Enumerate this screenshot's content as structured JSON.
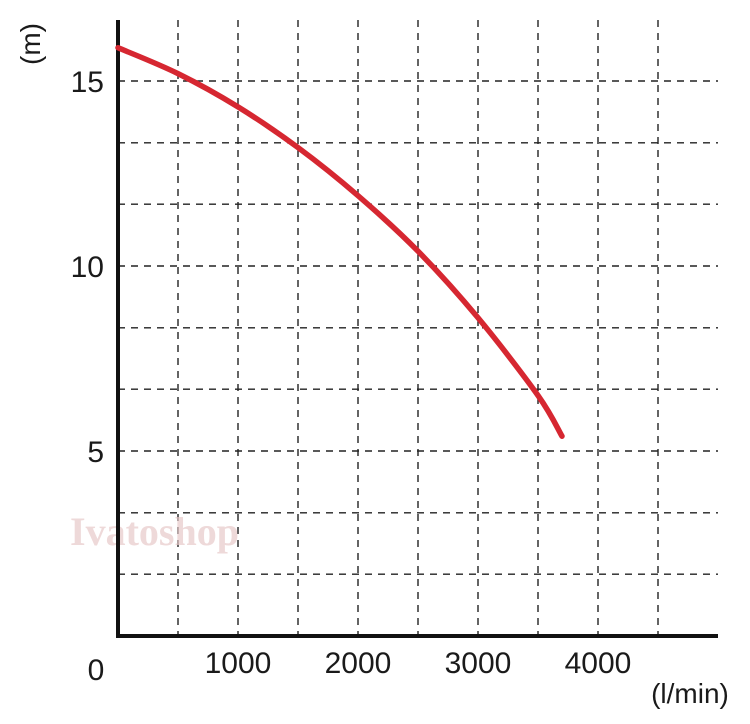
{
  "chart_data": {
    "type": "line",
    "xlabel": "(l/min)",
    "ylabel": "(m)",
    "origin_label": "0",
    "x_ticks": [
      1000,
      2000,
      3000,
      4000
    ],
    "y_ticks": [
      5,
      10,
      15
    ],
    "xlim": [
      0,
      5000
    ],
    "ylim": [
      0,
      16.7
    ],
    "x_grid": [
      500,
      1000,
      1500,
      2000,
      2500,
      3000,
      3500,
      4000,
      4500
    ],
    "y_grid": [
      1.67,
      3.33,
      5,
      6.67,
      8.33,
      10,
      11.67,
      13.33,
      15
    ],
    "grid": true,
    "grid_style": "dashed",
    "series": [
      {
        "color": "#d62731",
        "x": [
          0,
          500,
          1000,
          1500,
          2000,
          2500,
          3000,
          3500,
          3700
        ],
        "y": [
          15.9,
          15.2,
          14.3,
          13.2,
          11.9,
          10.4,
          8.6,
          6.5,
          5.4
        ]
      }
    ]
  },
  "watermark": "Ivatoshop"
}
